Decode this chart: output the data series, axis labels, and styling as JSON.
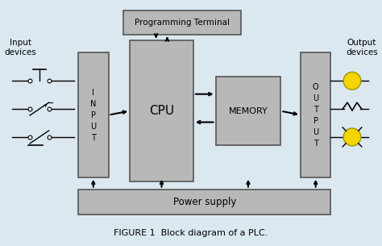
{
  "bg_color": "#dce8f0",
  "box_color": "#b8b8b8",
  "box_edge": "#555555",
  "title": "FIGURE 1  Block diagram of a PLC.",
  "prog_terminal_label": "Programming Terminal",
  "input_label": "I\nN\nP\nU\nT",
  "cpu_label": "CPU",
  "memory_label": "MEMORY",
  "output_label": "O\nU\nT\nP\nU\nT",
  "power_supply_label": "Power supply",
  "input_devices_label": "Input\ndevices",
  "output_devices_label": "Output\ndevices",
  "yellow": "#f5d400",
  "figsize": [
    4.74,
    3.05
  ],
  "dpi": 100
}
